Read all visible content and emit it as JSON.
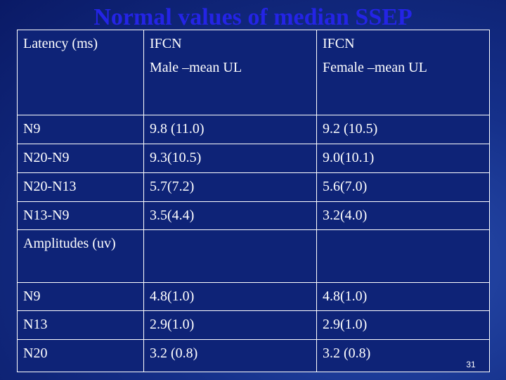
{
  "title": "Normal values of median SSEP",
  "table": {
    "header": [
      [
        "Latency (ms)"
      ],
      [
        "IFCN",
        "Male –mean UL"
      ],
      [
        "IFCN",
        "Female –mean UL"
      ]
    ],
    "rows": [
      [
        "N9",
        "9.8 (11.0)",
        "9.2 (10.5)"
      ],
      [
        "N20-N9",
        "9.3(10.5)",
        "9.0(10.1)"
      ],
      [
        "N20-N13",
        "5.7(7.2)",
        "5.6(7.0)"
      ],
      [
        "N13-N9",
        "3.5(4.4)",
        "3.2(4.0)"
      ],
      [
        "Amplitudes (uv)",
        null,
        null
      ],
      [
        "N9",
        "4.8(1.0)",
        "4.8(1.0)"
      ],
      [
        "N13",
        "2.9(1.0)",
        "2.9(1.0)"
      ],
      [
        "N20",
        "3.2 (0.8)",
        "3.2 (0.8)"
      ]
    ]
  },
  "slide_number": "31"
}
